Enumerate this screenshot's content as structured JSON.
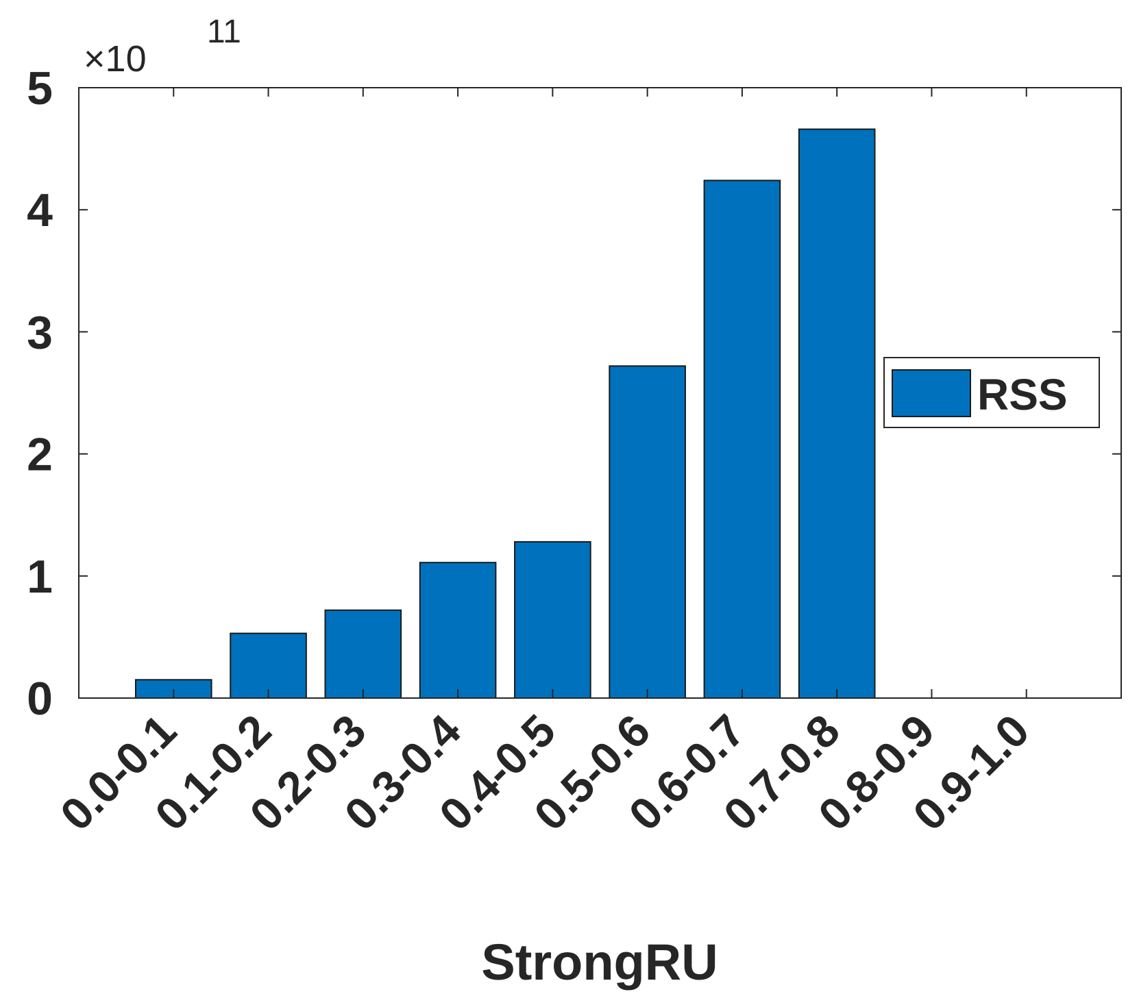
{
  "chart_data": {
    "type": "bar",
    "categories": [
      "0.0-0.1",
      "0.1-0.2",
      "0.2-0.3",
      "0.3-0.4",
      "0.4-0.5",
      "0.5-0.6",
      "0.6-0.7",
      "0.7-0.8",
      "0.8-0.9",
      "0.9-1.0"
    ],
    "series": [
      {
        "name": "RSS",
        "values": [
          0.15,
          0.53,
          0.72,
          1.11,
          1.28,
          2.72,
          4.24,
          4.66,
          0,
          0
        ]
      }
    ],
    "xlabel": "StrongRU",
    "ylabel": "",
    "ylim": [
      0,
      5
    ],
    "yticks": [
      "0",
      "1",
      "2",
      "3",
      "4",
      "5"
    ],
    "y_multiplier": {
      "base": "×10",
      "exponent": "11"
    },
    "legend_position": "east",
    "grid": false,
    "bar_color": "#0072BD"
  }
}
